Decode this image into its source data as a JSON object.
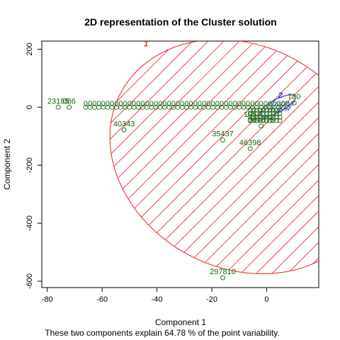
{
  "chart_data": {
    "type": "scatter",
    "title": "2D representation of the Cluster solution",
    "xlabel": "Component 1",
    "ylabel": "Component 2",
    "subtitle": "These two components explain 64.78 % of the point variability.",
    "xlim": [
      -82,
      19
    ],
    "ylim": [
      -622,
      228
    ],
    "xticks": [
      -80,
      -60,
      -40,
      -20,
      0
    ],
    "yticks": [
      200,
      0,
      -200,
      -400,
      -600
    ],
    "colors": {
      "cluster1": "#ee2222",
      "cluster2": "#2222dd",
      "points": "#116611"
    },
    "clusters": [
      {
        "label": "1",
        "center": [
          -12,
          -190
        ],
        "label_pos": [
          -44,
          210
        ]
      },
      {
        "label": "2",
        "center": [
          4,
          5
        ],
        "label_pos": [
          5,
          32
        ]
      }
    ],
    "labeled_points": [
      {
        "label": "23185",
        "x": -76,
        "y": 0
      },
      {
        "label": "086",
        "x": -72,
        "y": 0
      },
      {
        "label": "40343",
        "x": -52,
        "y": -78
      },
      {
        "label": "35437",
        "x": -16,
        "y": -113
      },
      {
        "label": "46398",
        "x": -6,
        "y": -143
      },
      {
        "label": "297810",
        "x": -16,
        "y": -588
      },
      {
        "label": "204675",
        "x": -2,
        "y": -65
      },
      {
        "label": "195",
        "x": -6,
        "y": -45
      },
      {
        "label": "730",
        "x": 10,
        "y": 15
      }
    ],
    "dense_row_y": 13
  }
}
